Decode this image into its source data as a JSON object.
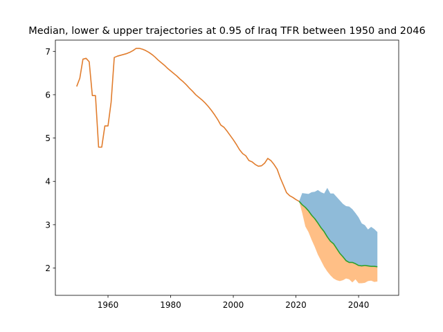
{
  "chart_data": {
    "type": "area",
    "title": "Median, lower & upper trajectories at 0.95 of Iraq TFR between 1950 and 2046",
    "xlabel": "",
    "ylabel": "",
    "xlim": [
      1943.2,
      2052.8
    ],
    "ylim": [
      1.37,
      7.26
    ],
    "xticks": [
      1960,
      1980,
      2000,
      2020,
      2040
    ],
    "yticks": [
      2,
      3,
      4,
      5,
      6,
      7
    ],
    "grid": false,
    "legend": false,
    "colors": {
      "upper_band": "#8fbbd9",
      "lower_band": "#ffbf86",
      "median": "#2ca02c",
      "history": "#e17c2c"
    },
    "history": {
      "x": [
        1950,
        1951,
        1952,
        1953,
        1954,
        1955,
        1956,
        1957,
        1958,
        1959,
        1960,
        1961,
        1962,
        1963,
        1964,
        1965,
        1966,
        1967,
        1968,
        1969,
        1970,
        1971,
        1972,
        1973,
        1974,
        1975,
        1976,
        1977,
        1978,
        1979,
        1980,
        1981,
        1982,
        1983,
        1984,
        1985,
        1986,
        1987,
        1988,
        1989,
        1990,
        1991,
        1992,
        1993,
        1994,
        1995,
        1996,
        1997,
        1998,
        1999,
        2000,
        2001,
        2002,
        2003,
        2004,
        2005,
        2006,
        2007,
        2008,
        2009,
        2010,
        2011,
        2012,
        2013,
        2014,
        2015,
        2016,
        2017,
        2018,
        2019,
        2020,
        2021
      ],
      "y": [
        6.19,
        6.38,
        6.82,
        6.84,
        6.76,
        5.98,
        5.98,
        4.79,
        4.79,
        5.28,
        5.28,
        5.83,
        6.86,
        6.89,
        6.91,
        6.93,
        6.95,
        6.98,
        7.02,
        7.07,
        7.07,
        7.05,
        7.02,
        6.98,
        6.93,
        6.87,
        6.8,
        6.74,
        6.68,
        6.61,
        6.55,
        6.49,
        6.43,
        6.36,
        6.3,
        6.23,
        6.15,
        6.08,
        6.0,
        5.94,
        5.88,
        5.81,
        5.73,
        5.64,
        5.54,
        5.43,
        5.3,
        5.25,
        5.16,
        5.06,
        4.96,
        4.85,
        4.73,
        4.64,
        4.59,
        4.48,
        4.45,
        4.39,
        4.35,
        4.36,
        4.42,
        4.53,
        4.48,
        4.39,
        4.28,
        4.08,
        3.91,
        3.74,
        3.67,
        3.63,
        3.58,
        3.54
      ]
    },
    "median": {
      "x": [
        2021,
        2022,
        2023,
        2024,
        2025,
        2026,
        2027,
        2028,
        2029,
        2030,
        2031,
        2032,
        2033,
        2034,
        2035,
        2036,
        2037,
        2038,
        2039,
        2040,
        2041,
        2042,
        2043,
        2044,
        2045,
        2046
      ],
      "y": [
        3.54,
        3.46,
        3.4,
        3.32,
        3.22,
        3.14,
        3.04,
        2.93,
        2.84,
        2.72,
        2.62,
        2.56,
        2.45,
        2.34,
        2.26,
        2.17,
        2.13,
        2.13,
        2.1,
        2.06,
        2.05,
        2.06,
        2.05,
        2.04,
        2.04,
        2.03
      ]
    },
    "upper": {
      "x": [
        2021,
        2022,
        2023,
        2024,
        2025,
        2026,
        2027,
        2028,
        2029,
        2030,
        2031,
        2032,
        2033,
        2034,
        2035,
        2036,
        2037,
        2038,
        2039,
        2040,
        2041,
        2042,
        2043,
        2044,
        2045,
        2046
      ],
      "y": [
        3.54,
        3.73,
        3.72,
        3.71,
        3.75,
        3.76,
        3.8,
        3.75,
        3.72,
        3.85,
        3.72,
        3.72,
        3.64,
        3.56,
        3.48,
        3.43,
        3.42,
        3.36,
        3.27,
        3.17,
        3.03,
        2.99,
        2.89,
        2.95,
        2.9,
        2.83
      ]
    },
    "lower": {
      "x": [
        2021,
        2022,
        2023,
        2024,
        2025,
        2026,
        2027,
        2028,
        2029,
        2030,
        2031,
        2032,
        2033,
        2034,
        2035,
        2036,
        2037,
        2038,
        2039,
        2040,
        2041,
        2042,
        2043,
        2044,
        2045,
        2046
      ],
      "y": [
        3.54,
        3.27,
        2.96,
        2.83,
        2.65,
        2.49,
        2.31,
        2.17,
        2.03,
        1.92,
        1.83,
        1.76,
        1.72,
        1.7,
        1.72,
        1.76,
        1.74,
        1.67,
        1.74,
        1.65,
        1.65,
        1.66,
        1.7,
        1.71,
        1.68,
        1.69
      ]
    }
  }
}
